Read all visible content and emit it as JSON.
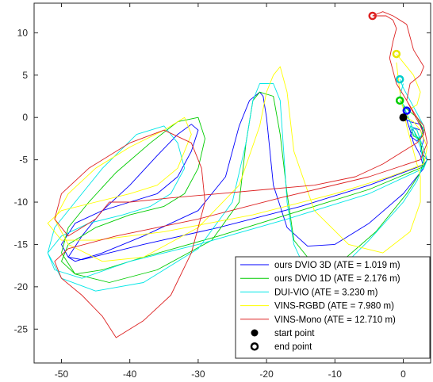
{
  "chart_data": {
    "type": "line",
    "title": "",
    "xlabel": "",
    "ylabel": "",
    "xlim": [
      -54,
      4
    ],
    "ylim": [
      -29,
      13.5
    ],
    "xticks": [
      -50,
      -40,
      -30,
      -20,
      -10,
      0
    ],
    "yticks": [
      10,
      5,
      0,
      -5,
      -10,
      -15,
      -20,
      -25
    ],
    "xtick_labels": [
      "-50",
      "-40",
      "-30",
      "-20",
      "-10",
      "0"
    ],
    "ytick_labels": [
      "10",
      "5",
      "0",
      "-5",
      "-10",
      "-15",
      "-20",
      "-25"
    ],
    "grid": false,
    "legend_position": "bottom-right",
    "series": [
      {
        "name": "ours DVIO 3D (ATE = 1.019 m)",
        "color": "#0000ff",
        "x": [
          0,
          1,
          2.5,
          3,
          2,
          1,
          1.5,
          2.5,
          3,
          2.5,
          3.5,
          3,
          -5,
          -15,
          -27,
          -38,
          -43,
          -47,
          -49,
          -50,
          -48,
          -44,
          -40,
          -36,
          -33,
          -31,
          -30,
          -31,
          -33,
          -36,
          -40,
          -44,
          -47,
          -49,
          -48,
          -44,
          -38,
          -30,
          -26,
          -24,
          -22.5,
          -21,
          -20.5,
          -20,
          -19,
          -17,
          -14,
          -10,
          -5,
          0,
          2,
          3,
          2.5,
          1.5,
          1,
          0.5
        ],
        "y": [
          0,
          -0.5,
          -0.8,
          -1.8,
          -2.8,
          -2.2,
          -1.2,
          -1.5,
          -2.6,
          -4,
          -5,
          -5.6,
          -8,
          -10.5,
          -13,
          -15,
          -16,
          -16.8,
          -16.5,
          -15,
          -12.5,
          -11,
          -10,
          -9,
          -7,
          -4,
          -1.5,
          -0.8,
          -2,
          -4.5,
          -8,
          -11,
          -14,
          -16.5,
          -17,
          -16,
          -14,
          -11,
          -7,
          -1,
          2,
          3,
          2.5,
          0,
          -8,
          -13,
          -15.2,
          -15,
          -12.5,
          -9,
          -7,
          -6,
          -4.5,
          -3,
          -1.5,
          -0.3
        ]
      },
      {
        "name": "ours DVIO 1D (ATE = 2.176 m)",
        "color": "#00cc00",
        "x": [
          -0.5,
          0.5,
          2,
          3,
          2.5,
          1.5,
          1,
          2,
          3.5,
          3,
          -5,
          -15,
          -27,
          -38,
          -44,
          -48,
          -50,
          -49,
          -45,
          -40,
          -35,
          -32,
          -30,
          -29,
          -30,
          -33,
          -37,
          -42,
          -46,
          -49,
          -50,
          -48,
          -43,
          -36,
          -28,
          -24,
          -23,
          -22,
          -21,
          -19,
          -18,
          -17,
          -16,
          -13,
          -9,
          -4,
          0.5,
          2.5,
          3,
          2.5,
          1.5,
          0.5,
          -0.2
        ],
        "y": [
          2,
          1,
          0,
          -1.5,
          -2.6,
          -2.2,
          -1,
          -1.5,
          -5,
          -5.8,
          -8.5,
          -11,
          -14,
          -16.5,
          -18,
          -18.5,
          -17,
          -15,
          -13,
          -11.5,
          -10.5,
          -9,
          -6,
          -2.5,
          0,
          -0.5,
          -3,
          -6.5,
          -10,
          -13,
          -16,
          -18.5,
          -19.5,
          -18,
          -14.5,
          -10,
          -3,
          2,
          3,
          2.5,
          -2,
          -9,
          -14.5,
          -17.5,
          -17,
          -13.5,
          -9,
          -6.5,
          -5,
          -3,
          -1.5,
          0.5,
          1.5
        ]
      },
      {
        "name": "DUI-VIO (ATE = 3.230 m)",
        "color": "#00e6e6",
        "x": [
          -0.5,
          0,
          1,
          2,
          3,
          2.5,
          1.5,
          1,
          2,
          3.5,
          3,
          -5,
          -17,
          -30,
          -40,
          -47,
          -51,
          -52,
          -50,
          -46,
          -41,
          -37,
          -34,
          -32,
          -33,
          -35,
          -39,
          -44,
          -48,
          -51,
          -52,
          -50,
          -45,
          -38,
          -30,
          -25,
          -23,
          -22,
          -21,
          -19,
          -18,
          -17.5,
          -17,
          -16,
          -14,
          -10,
          -5,
          0,
          2,
          3,
          2.5,
          1.5,
          0.5,
          -0.5,
          0
        ],
        "y": [
          4.5,
          3.5,
          2,
          0.5,
          -1,
          -2.5,
          -2,
          -1,
          -1.5,
          -5,
          -6,
          -9,
          -12,
          -15,
          -17,
          -19,
          -18,
          -16,
          -14,
          -12.5,
          -11.5,
          -10.5,
          -9,
          -6,
          -3,
          -1,
          -2,
          -6,
          -10,
          -13,
          -16,
          -19,
          -20.5,
          -19.5,
          -15.5,
          -10,
          -3,
          2,
          4,
          4,
          2,
          -4,
          -10,
          -15,
          -18.5,
          -18.5,
          -14.5,
          -10,
          -7.5,
          -5.5,
          -3.5,
          -1.5,
          0.5,
          2.5,
          4
        ]
      },
      {
        "name": "VINS-RGBD (ATE = 7.980 m)",
        "color": "#ffff00",
        "x": [
          -1,
          0,
          1.5,
          2.5,
          2,
          1,
          0.5,
          1.5,
          2.5,
          3.5,
          3,
          -2,
          -10,
          -22,
          -35,
          -45,
          -50,
          -52,
          -50,
          -45,
          -40,
          -36,
          -33,
          -31,
          -32,
          -35,
          -40,
          -45,
          -49,
          -51,
          -49,
          -44,
          -38,
          -30,
          -24,
          -21,
          -20,
          -19,
          -18,
          -17,
          -16,
          -13,
          -8,
          -3,
          1,
          2.5,
          2.5,
          1.5,
          0.5,
          -0.5,
          -1
        ],
        "y": [
          7.5,
          6.5,
          5,
          3,
          1.5,
          1,
          0,
          -0.5,
          -1.5,
          -3.5,
          -5.5,
          -7,
          -9,
          -11.5,
          -13.5,
          -14.5,
          -14.5,
          -12.5,
          -11,
          -10,
          -9,
          -8,
          -6,
          -2,
          0,
          -1.5,
          -3.5,
          -6,
          -9,
          -12,
          -15,
          -17,
          -16.5,
          -13,
          -8,
          -1,
          3,
          5,
          6,
          3,
          -4,
          -11,
          -15,
          -16,
          -13.5,
          -10,
          -7,
          -4,
          -1,
          3,
          6.5
        ]
      },
      {
        "name": "VINS-Mono (ATE = 12.710 m)",
        "color": "#dd2222",
        "x": [
          -4.5,
          -3,
          -1.5,
          0.5,
          1.5,
          3,
          2.5,
          1,
          0.5,
          2,
          3,
          3.5,
          2.5,
          -5,
          -18,
          -30,
          -42,
          -49,
          -51,
          -50,
          -47,
          -44,
          -42,
          -38,
          -34,
          -31,
          -29,
          -29.5,
          -31,
          -35,
          -40,
          -46,
          -50,
          -51,
          -49,
          -45,
          -43,
          -40,
          -34,
          -27,
          -20,
          -13,
          -7,
          -3,
          0,
          2,
          3,
          2.5,
          1.5,
          0.5,
          -1,
          -2,
          -1.5,
          -1,
          -1.5,
          -2.5,
          -4.5
        ],
        "y": [
          12,
          12.5,
          12,
          11,
          8,
          6,
          5,
          4,
          2,
          0,
          -1,
          -3,
          -5,
          -7,
          -9.5,
          -12,
          -14,
          -15.5,
          -17,
          -19,
          -21,
          -23.5,
          -26,
          -24,
          -21,
          -16,
          -10,
          -6,
          -3,
          -1.5,
          -3,
          -6,
          -9,
          -12,
          -14,
          -12,
          -10,
          -10,
          -9.5,
          -9,
          -8.5,
          -8,
          -7,
          -5.5,
          -4,
          -3,
          -2,
          -1,
          0.5,
          2,
          4,
          7,
          9,
          10.5,
          11.5,
          12,
          12
        ]
      }
    ],
    "start_points": [
      {
        "x": 0,
        "y": 0,
        "color": "#000000"
      }
    ],
    "end_points": [
      {
        "x": -4.5,
        "y": 12,
        "color": "#dd2222"
      },
      {
        "x": -1,
        "y": 7.5,
        "color": "#e6e600"
      },
      {
        "x": -0.5,
        "y": 4.5,
        "color": "#00cccc"
      },
      {
        "x": -0.5,
        "y": 2,
        "color": "#00cc00"
      },
      {
        "x": 0.5,
        "y": 0.8,
        "color": "#0000ff"
      }
    ],
    "legend": [
      {
        "label": "ours DVIO 3D (ATE = 1.019 m)",
        "color": "#0000ff",
        "marker": "line"
      },
      {
        "label": "ours DVIO 1D (ATE = 2.176 m)",
        "color": "#00cc00",
        "marker": "line"
      },
      {
        "label": "DUI-VIO (ATE = 3.230 m)",
        "color": "#00e6e6",
        "marker": "line"
      },
      {
        "label": "VINS-RGBD (ATE = 7.980 m)",
        "color": "#ffff00",
        "marker": "line"
      },
      {
        "label": "VINS-Mono (ATE = 12.710 m)",
        "color": "#dd2222",
        "marker": "line"
      },
      {
        "label": "start point",
        "color": "#000000",
        "marker": "filled-circle"
      },
      {
        "label": "end point",
        "color": "#000000",
        "marker": "hollow-circle"
      }
    ]
  }
}
